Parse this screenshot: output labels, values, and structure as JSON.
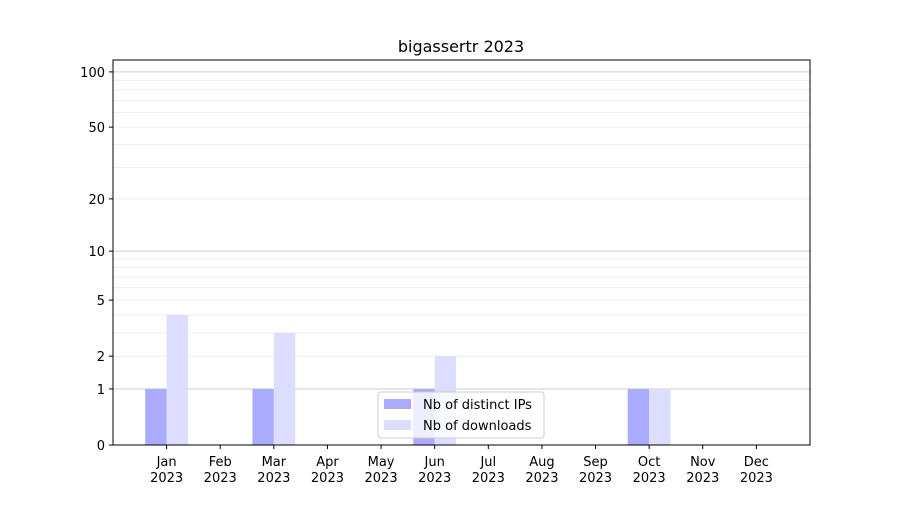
{
  "chart_data": {
    "type": "bar",
    "title": "bigassertr 2023",
    "xlabel": "",
    "ylabel": "",
    "yscale": "log(1+y)",
    "ylim": [
      0,
      116
    ],
    "yticks": [
      0,
      1,
      2,
      5,
      10,
      20,
      50,
      100
    ],
    "ytick_labels": [
      "0",
      "1",
      "2",
      "5",
      "10",
      "20",
      "50",
      "100"
    ],
    "categories": [
      "Jan\n2023",
      "Feb\n2023",
      "Mar\n2023",
      "Apr\n2023",
      "May\n2023",
      "Jun\n2023",
      "Jul\n2023",
      "Aug\n2023",
      "Sep\n2023",
      "Oct\n2023",
      "Nov\n2023",
      "Dec\n2023"
    ],
    "series": [
      {
        "name": "Nb of distinct IPs",
        "color": "#aaaaff",
        "values": [
          1,
          0,
          1,
          0,
          0,
          1,
          0,
          0,
          0,
          1,
          0,
          0
        ]
      },
      {
        "name": "Nb of downloads",
        "color": "#ddddff",
        "values": [
          4,
          0,
          3,
          0,
          0,
          2,
          0,
          0,
          0,
          1,
          0,
          0
        ]
      }
    ],
    "grid": true,
    "legend": "bottom-center"
  }
}
